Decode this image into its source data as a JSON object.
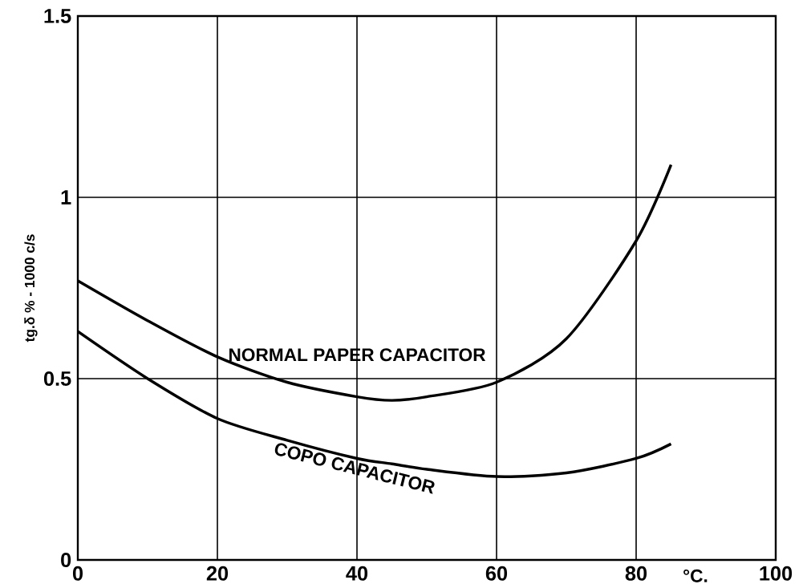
{
  "chart_data": {
    "type": "line",
    "xlabel": "°C.",
    "ylabel": "tg.δ % - 1000 c/s",
    "x": [
      0,
      10,
      20,
      30,
      40,
      45,
      50,
      60,
      70,
      80,
      85
    ],
    "series": [
      {
        "name": "NORMAL PAPER CAPACITOR",
        "color": "#000000",
        "values": [
          0.77,
          0.66,
          0.56,
          0.49,
          0.45,
          0.44,
          0.45,
          0.49,
          0.61,
          0.88,
          1.09
        ]
      },
      {
        "name": "COPO CAPACITOR",
        "color": "#000000",
        "values": [
          0.63,
          0.5,
          0.39,
          0.33,
          0.28,
          0.265,
          0.25,
          0.23,
          0.24,
          0.28,
          0.32
        ]
      }
    ],
    "xlim": [
      0,
      100
    ],
    "ylim": [
      0,
      1.5
    ],
    "xticks": [
      0,
      20,
      40,
      60,
      80,
      100
    ],
    "yticks": [
      0,
      0.5,
      1,
      1.5
    ],
    "grid": true,
    "legend": false,
    "marker": "none",
    "line_style": "solid"
  }
}
